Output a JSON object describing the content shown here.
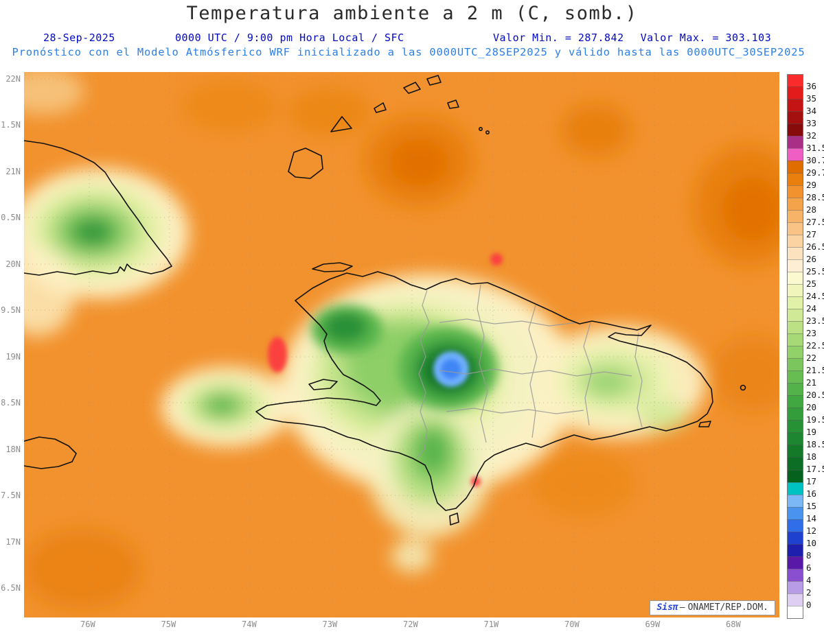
{
  "title": "Temperatura ambiente a 2 m (C, somb.)",
  "header": {
    "date": "28-Sep-2025",
    "time": "0000 UTC / 9:00 pm Hora Local / SFC",
    "min_label": "Valor Min. = 287.842",
    "max_label": "Valor Max. = 303.103",
    "forecast_line": "Pronóstico con el Modelo Atmósferico WRF inicializado a las 0000UTC_28SEP2025 y válido hasta las  0000UTC_30SEP2025"
  },
  "map": {
    "lat_labels": [
      "22N",
      "1.5N",
      "21N",
      "0.5N",
      "20N",
      "9.5N",
      "19N",
      "8.5N",
      "18N",
      "7.5N",
      "17N",
      "6.5N"
    ],
    "lon_labels": [
      "76W",
      "75W",
      "74W",
      "73W",
      "72W",
      "71W",
      "70W",
      "69W",
      "68W"
    ]
  },
  "colorbar": {
    "cells": [
      {
        "color": "#fa2b2b",
        "label": "36"
      },
      {
        "color": "#e31b1b",
        "label": "35"
      },
      {
        "color": "#c51414",
        "label": "34"
      },
      {
        "color": "#a40f0f",
        "label": "33"
      },
      {
        "color": "#870b0b",
        "label": "32"
      },
      {
        "color": "#a92e85",
        "label": "31.5"
      },
      {
        "color": "#ef5ec2",
        "label": "30.7"
      },
      {
        "color": "#e06d00",
        "label": "29.7"
      },
      {
        "color": "#ea7f0e",
        "label": "29"
      },
      {
        "color": "#f2922e",
        "label": "28.5"
      },
      {
        "color": "#f4a34b",
        "label": "28"
      },
      {
        "color": "#f7b368",
        "label": "27.5"
      },
      {
        "color": "#f9c386",
        "label": "27"
      },
      {
        "color": "#fbd3a3",
        "label": "26.5"
      },
      {
        "color": "#fce2bf",
        "label": "26"
      },
      {
        "color": "#fdeed4",
        "label": "25.5"
      },
      {
        "color": "#fbf9cf",
        "label": "25"
      },
      {
        "color": "#f0f6bb",
        "label": "24.5"
      },
      {
        "color": "#e2f1a8",
        "label": "24"
      },
      {
        "color": "#d0e996",
        "label": "23.5"
      },
      {
        "color": "#bce185",
        "label": "23"
      },
      {
        "color": "#a7d976",
        "label": "22.5"
      },
      {
        "color": "#92d169",
        "label": "22"
      },
      {
        "color": "#7cc75d",
        "label": "21.5"
      },
      {
        "color": "#67bd52",
        "label": "21"
      },
      {
        "color": "#53b249",
        "label": "20.5"
      },
      {
        "color": "#41a741",
        "label": "20"
      },
      {
        "color": "#339c3b",
        "label": "19.5"
      },
      {
        "color": "#279135",
        "label": "19"
      },
      {
        "color": "#1d8630",
        "label": "18.5"
      },
      {
        "color": "#147a2a",
        "label": "18"
      },
      {
        "color": "#0c6e24",
        "label": "17.5"
      },
      {
        "color": "#05621e",
        "label": "17"
      },
      {
        "color": "#00c2c2",
        "label": "16"
      },
      {
        "color": "#7cb8f5",
        "label": "15"
      },
      {
        "color": "#4a94f0",
        "label": "14"
      },
      {
        "color": "#2f6ee8",
        "label": "12"
      },
      {
        "color": "#1f41d0",
        "label": "10"
      },
      {
        "color": "#1f1fae",
        "label": "8"
      },
      {
        "color": "#5a18a8",
        "label": "6"
      },
      {
        "color": "#8a4fd0",
        "label": "4"
      },
      {
        "color": "#b99ce6",
        "label": "2"
      },
      {
        "color": "#decff2",
        "label": "0"
      },
      {
        "color": "#ffffff",
        "label": ""
      }
    ]
  },
  "watermark": {
    "brand": "Sisπ",
    "separator": "–",
    "text": "ONAMET/REP.DOM."
  },
  "chart_data": {
    "type": "heatmap",
    "title": "Temperatura ambiente a 2 m (C, somb.)",
    "variable": "Temperatura ambiente a 2 m",
    "units": "C",
    "valid_time": "0000 UTC / 9:00 pm Hora Local / SFC",
    "date": "28-Sep-2025",
    "value_min": 287.842,
    "value_max": 303.103,
    "x_ticks": [
      "76W",
      "75W",
      "74W",
      "73W",
      "72W",
      "71W",
      "70W",
      "69W",
      "68W"
    ],
    "y_ticks": [
      "22N",
      "1.5N",
      "21N",
      "0.5N",
      "20N",
      "9.5N",
      "19N",
      "8.5N",
      "18N",
      "7.5N",
      "17N",
      "6.5N"
    ],
    "contour_levels": [
      0,
      2,
      4,
      6,
      8,
      10,
      12,
      14,
      15,
      16,
      17,
      17.5,
      18,
      18.5,
      19,
      19.5,
      20,
      20.5,
      21,
      21.5,
      22,
      22.5,
      23,
      23.5,
      24,
      24.5,
      25,
      25.5,
      26,
      26.5,
      27,
      27.5,
      28,
      28.5,
      29,
      29.7,
      30.7,
      31.5,
      32,
      33,
      34,
      35,
      36
    ],
    "legend_position": "right",
    "grid": true,
    "regions": [
      {
        "area": "ocean background",
        "approx_value_C": "28.5-29"
      },
      {
        "area": "central Hispaniola cordillera",
        "approx_value_C": "17-22 with blue core 14-16"
      },
      {
        "area": "eastern Cuba highlands",
        "approx_value_C": "20-24"
      },
      {
        "area": "southwest Haiti peninsula",
        "approx_value_C": "22-25"
      },
      {
        "area": "eastern Dominican Republic hills",
        "approx_value_C": "23-26"
      },
      {
        "area": "hot spots west of Haiti and south coast",
        "approx_value_C": "30.7-31.5"
      }
    ]
  }
}
